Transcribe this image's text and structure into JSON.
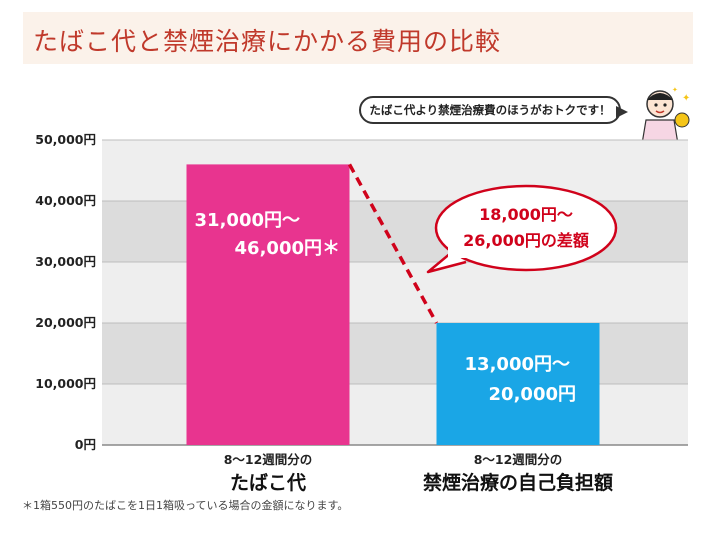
{
  "title": "たばこ代と禁煙治療にかかる費用の比較",
  "speech_bubble": "たばこ代より禁煙治療費のほうがおトクです！",
  "footnote": "＊1箱550円のたばこを1日1箱吸っている場合の金額になります。",
  "chart_data": {
    "type": "bar",
    "categories": [
      "たばこ代",
      "禁煙治療の自己負担額"
    ],
    "category_sublabels": [
      "8～12週間分の",
      "8～12週間分の"
    ],
    "values": [
      46000,
      20000
    ],
    "ranges": [
      [
        31000,
        46000
      ],
      [
        13000,
        20000
      ]
    ],
    "bar_labels": [
      [
        "31,000円～",
        "46,000円＊"
      ],
      [
        "13,000円～",
        "20,000円"
      ]
    ],
    "colors": [
      "#e8348f",
      "#1aa6e6"
    ],
    "ylim": [
      0,
      50000
    ],
    "yticks": [
      "0円",
      "10,000円",
      "20,000円",
      "30,000円",
      "40,000円",
      "50,000円"
    ],
    "annotation": [
      "18,000円～",
      "26,000円の差額"
    ],
    "grid": true
  }
}
